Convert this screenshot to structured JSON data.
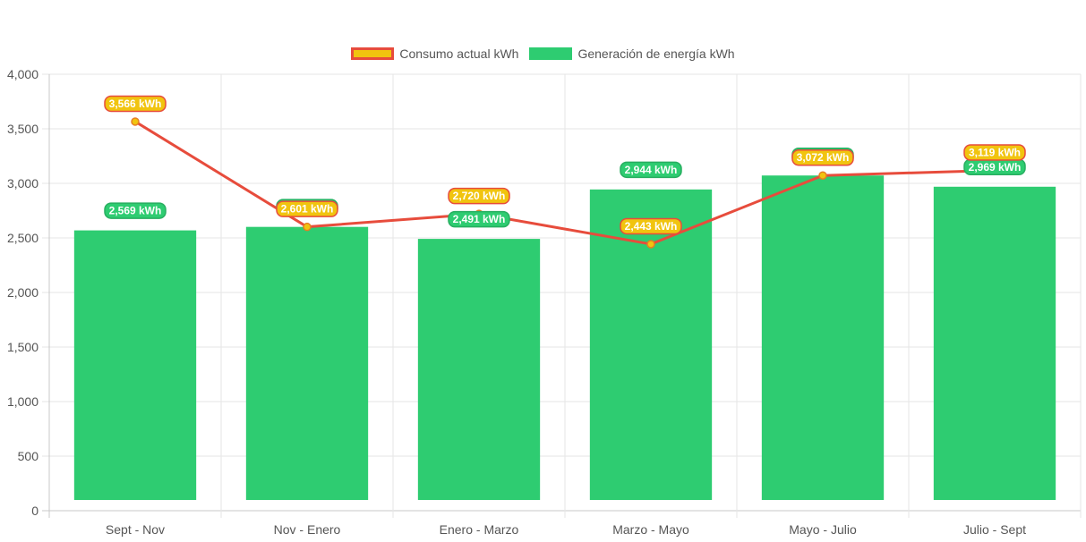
{
  "chart_data": {
    "type": "bar",
    "categories": [
      "Sept - Nov",
      "Nov - Enero",
      "Enero - Marzo",
      "Marzo - Mayo",
      "Mayo - Julio",
      "Julio - Sept"
    ],
    "ylim": [
      0,
      4000
    ],
    "yticks": [
      0,
      500,
      1000,
      1500,
      2000,
      2500,
      3000,
      3500,
      4000
    ],
    "ytick_labels": [
      "0",
      "500",
      "1,000",
      "1,500",
      "2,000",
      "2,500",
      "3,000",
      "3,500",
      "4,000"
    ],
    "title": "",
    "xlabel": "",
    "ylabel": "",
    "grid": true,
    "legend_position": "top-center",
    "series": [
      {
        "name": "Consumo actual kWh",
        "type": "line",
        "values": [
          3566,
          2601,
          2720,
          2443,
          3072,
          3119
        ],
        "labels": [
          "3,566 kWh",
          "2,601 kWh",
          "2,720 kWh",
          "2,443 kWh",
          "3,072 kWh",
          "3,119 kWh"
        ],
        "color": "#e74c3c",
        "fill": "#f1c40f"
      },
      {
        "name": "Generación de energía kWh",
        "type": "bar",
        "values": [
          2569,
          2601,
          2491,
          2944,
          3072,
          2969
        ],
        "labels": [
          "2,569 kWh",
          "2,601 kWh",
          "2,491 kWh",
          "2,944 kWh",
          "3,072 kWh",
          "2,969 kWh"
        ],
        "color": "#2ecc71"
      }
    ]
  }
}
